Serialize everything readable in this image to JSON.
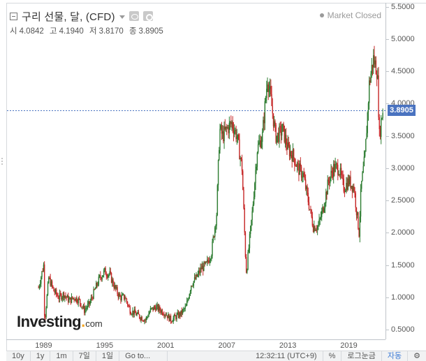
{
  "legend": {
    "title": "구리 선물, 달, (CFD)",
    "ohlc": [
      {
        "label": "시",
        "value": "4.0842"
      },
      {
        "label": "고",
        "value": "4.1940"
      },
      {
        "label": "저",
        "value": "3.8170"
      },
      {
        "label": "종",
        "value": "3.8905"
      }
    ]
  },
  "market_status": "Market Closed",
  "last_price": "3.8905",
  "watermark": {
    "main": "Investing",
    "dot": ".",
    "suffix": "com"
  },
  "bottom_bar": {
    "ranges": [
      "10y",
      "1y",
      "1m",
      "7일",
      "1일"
    ],
    "goto": "Go to...",
    "time": "12:32:11 (UTC+9)",
    "percent": "%",
    "log": "로그눈금",
    "auto": "자동"
  },
  "colors": {
    "up": "#2e7d32",
    "down": "#c62828",
    "last_price_bg": "#4a73c0",
    "price_line": "#4a73c0"
  },
  "chart_data": {
    "type": "candlestick",
    "title": "구리 선물, 달, (CFD)",
    "x_ticks": [
      "1989",
      "1995",
      "2001",
      "2007",
      "2013",
      "2019"
    ],
    "y_ticks": [
      "0.5000",
      "1.0000",
      "1.5000",
      "2.0000",
      "2.5000",
      "3.0000",
      "3.5000",
      "4.0000",
      "4.5000",
      "5.0000",
      "5.5000"
    ],
    "ylim": [
      0.35,
      5.55
    ],
    "xlim": [
      1985.4,
      2022.6
    ],
    "last_value": 3.8905,
    "series": [
      {
        "x": [
          1988.5,
          1989,
          1989.1,
          1989.5,
          1990,
          1990.5,
          1991,
          1991.5,
          1992,
          1992.5,
          1993,
          1993.5,
          1994,
          1994.5,
          1995,
          1995.5,
          1996,
          1996.5,
          1997,
          1997.5,
          1998,
          1998.5,
          1999,
          1999.5,
          2000,
          2000.5,
          2001,
          2001.5,
          2002,
          2002.5,
          2003,
          2003.5,
          2004,
          2004.5,
          2005,
          2005.5,
          2006,
          2006.3,
          2006.6,
          2007,
          2007.5,
          2008,
          2008.5,
          2008.9,
          2009,
          2009.5,
          2010,
          2010.5,
          2011,
          2011.3,
          2011.8,
          2012,
          2012.5,
          2013,
          2013.5,
          2014,
          2014.5,
          2015,
          2015.5,
          2016,
          2016.5,
          2017,
          2017.5,
          2018,
          2018.5,
          2019,
          2019.5,
          2020,
          2020.2,
          2020.6,
          2021,
          2021.4,
          2021.8,
          2022,
          2022.3
        ],
        "values": [
          1.15,
          1.5,
          0.62,
          1.3,
          1.1,
          1.0,
          1.05,
          0.95,
          1.0,
          0.95,
          0.8,
          0.9,
          1.1,
          1.3,
          1.4,
          1.35,
          1.15,
          1.0,
          1.0,
          0.8,
          0.75,
          0.7,
          0.65,
          0.8,
          0.85,
          0.8,
          0.75,
          0.65,
          0.7,
          0.75,
          0.85,
          1.2,
          1.3,
          1.45,
          1.5,
          1.7,
          2.3,
          3.6,
          3.5,
          3.6,
          3.7,
          3.5,
          3.0,
          1.4,
          1.5,
          2.3,
          3.3,
          3.5,
          4.4,
          4.1,
          3.5,
          3.5,
          3.6,
          3.3,
          3.2,
          3.0,
          2.9,
          2.5,
          2.1,
          2.1,
          2.4,
          2.8,
          3.0,
          3.0,
          2.7,
          2.8,
          2.7,
          2.0,
          2.7,
          3.2,
          4.3,
          4.7,
          4.5,
          3.5,
          3.89
        ]
      }
    ]
  }
}
